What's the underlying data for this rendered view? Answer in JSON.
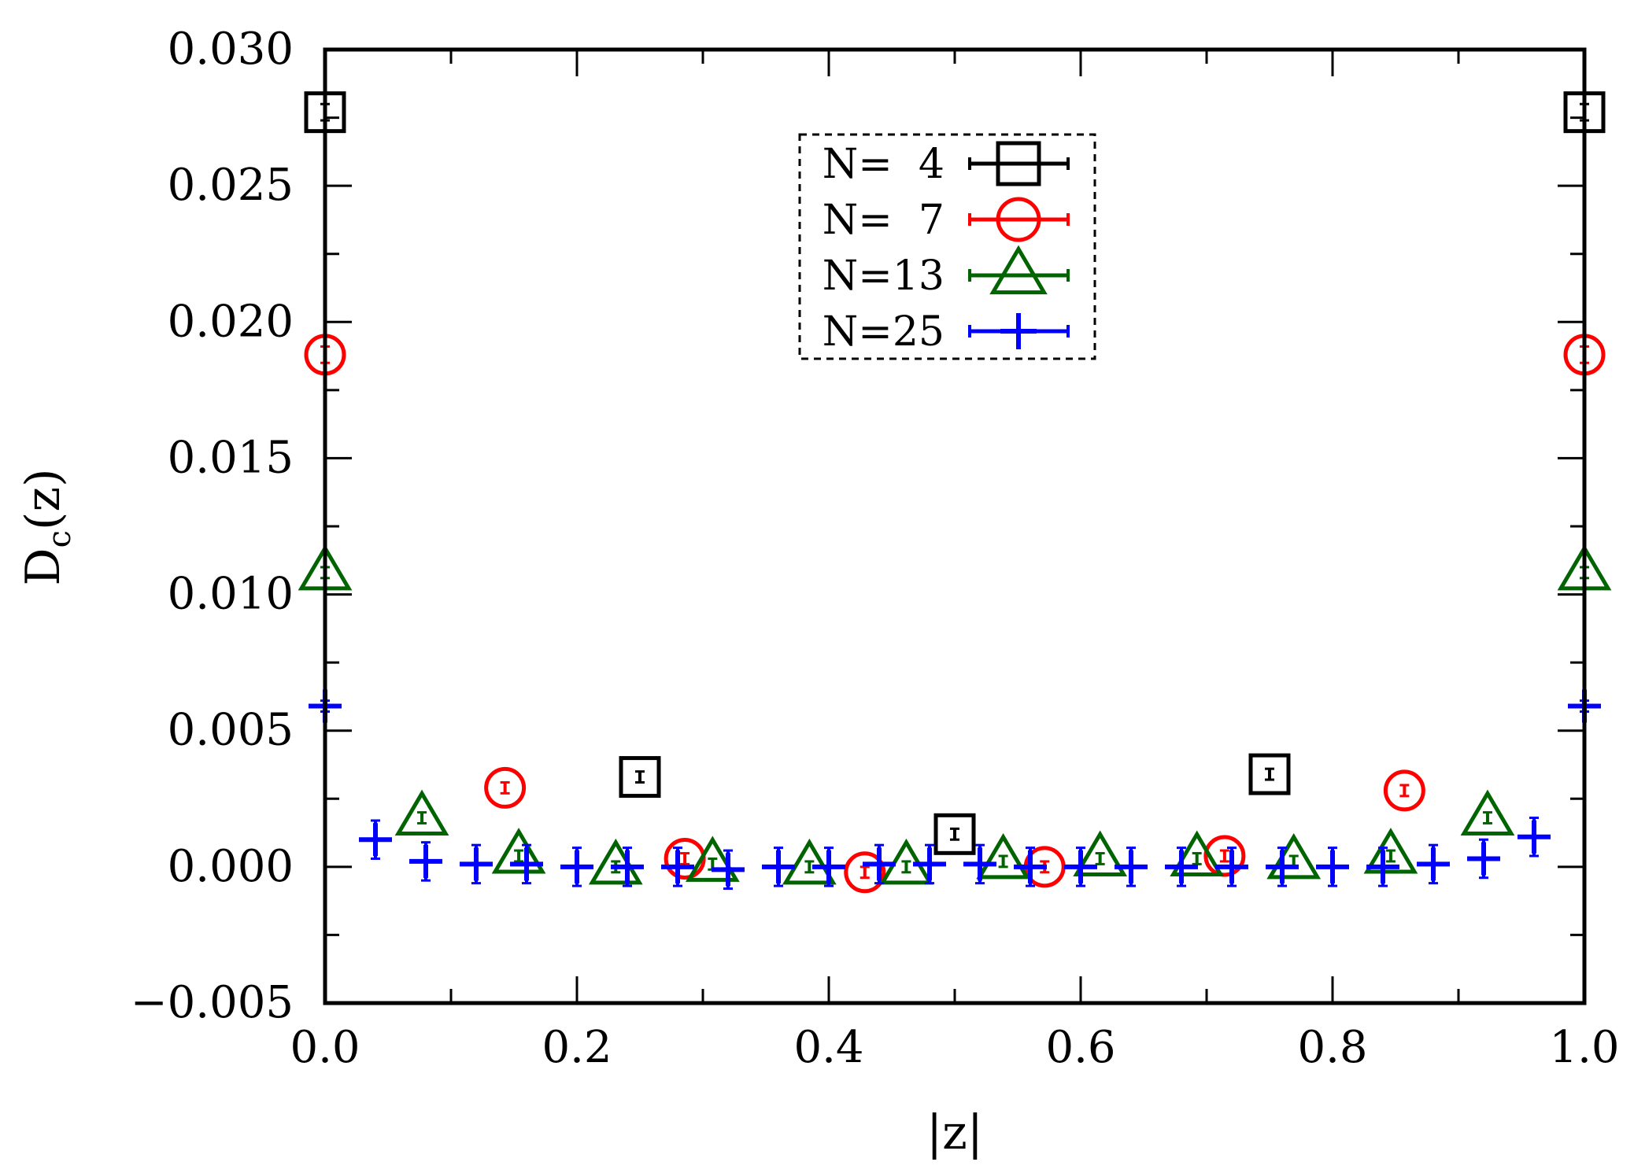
{
  "chart_data": {
    "type": "scatter",
    "title": "",
    "xlabel": "|z|",
    "ylabel": "Dc(z)",
    "ylabel_main": "D",
    "ylabel_sub": "c",
    "ylabel_tail": "(z)",
    "xlim": [
      0.0,
      1.0
    ],
    "ylim": [
      -0.005,
      0.03
    ],
    "xticks": [
      0.0,
      0.2,
      0.4,
      0.6,
      0.8,
      1.0
    ],
    "xtick_labels": [
      "0.0",
      "0.2",
      "0.4",
      "0.6",
      "0.8",
      "1.0"
    ],
    "yticks": [
      -0.005,
      0.0,
      0.005,
      0.01,
      0.015,
      0.02,
      0.025,
      0.03
    ],
    "ytick_labels": [
      "−0.005",
      "0.000",
      "0.005",
      "0.010",
      "0.015",
      "0.020",
      "0.025",
      "0.030"
    ],
    "grid": false,
    "legend_position": "top-center",
    "series": [
      {
        "name": "N=  4",
        "marker": "square",
        "color": "#000000",
        "x": [
          0.0,
          0.25,
          0.5,
          0.75,
          1.0
        ],
        "y": [
          0.0277,
          0.0033,
          0.0012,
          0.0034,
          0.0277
        ],
        "err": [
          0.0003,
          0.0002,
          0.0002,
          0.0002,
          0.0003
        ]
      },
      {
        "name": "N=  7",
        "marker": "circle",
        "color": "#ff0000",
        "x": [
          0.0,
          0.1429,
          0.2857,
          0.4286,
          0.5714,
          0.7143,
          0.8571,
          1.0
        ],
        "y": [
          0.0188,
          0.0029,
          0.0003,
          -0.0002,
          0.0,
          0.0004,
          0.0028,
          0.0188
        ],
        "err": [
          0.0003,
          0.0002,
          0.0002,
          0.0002,
          0.0002,
          0.0002,
          0.0002,
          0.0003
        ]
      },
      {
        "name": "N=13",
        "marker": "triangle",
        "color": "#006400",
        "x": [
          0.0,
          0.0769,
          0.1538,
          0.2308,
          0.3077,
          0.3846,
          0.4615,
          0.5385,
          0.6154,
          0.6923,
          0.7692,
          0.8462,
          0.9231,
          1.0
        ],
        "y": [
          0.0108,
          0.0018,
          0.0004,
          0.0,
          0.0001,
          0.0,
          0.0,
          0.0002,
          0.0003,
          0.0003,
          0.0002,
          0.0004,
          0.0018,
          0.0108
        ],
        "err": [
          0.0002,
          0.0002,
          0.0002,
          0.0002,
          0.0002,
          0.0002,
          0.0002,
          0.0002,
          0.0002,
          0.0002,
          0.0002,
          0.0002,
          0.0002,
          0.0002
        ]
      },
      {
        "name": "N=25",
        "marker": "plus",
        "color": "#0000ff",
        "x": [
          0.0,
          0.04,
          0.08,
          0.12,
          0.16,
          0.2,
          0.24,
          0.28,
          0.32,
          0.36,
          0.4,
          0.44,
          0.48,
          0.52,
          0.56,
          0.6,
          0.64,
          0.68,
          0.72,
          0.76,
          0.8,
          0.84,
          0.88,
          0.92,
          0.96,
          1.0
        ],
        "y": [
          0.0059,
          0.001,
          0.0002,
          0.0001,
          0.0001,
          0.0,
          0.0,
          0.0,
          -0.0001,
          0.0,
          0.0,
          0.0001,
          0.0001,
          0.0001,
          0.0,
          0.0,
          0.0,
          0.0,
          0.0,
          0.0,
          0.0,
          0.0,
          0.0001,
          0.0003,
          0.0011,
          0.0059
        ],
        "err": [
          0.0002,
          0.0007,
          0.0007,
          0.0007,
          0.0007,
          0.0007,
          0.0007,
          0.0007,
          0.0007,
          0.0007,
          0.0007,
          0.0007,
          0.0007,
          0.0007,
          0.0007,
          0.0007,
          0.0007,
          0.0007,
          0.0007,
          0.0007,
          0.0007,
          0.0007,
          0.0007,
          0.0007,
          0.0007,
          0.0002
        ]
      }
    ]
  }
}
